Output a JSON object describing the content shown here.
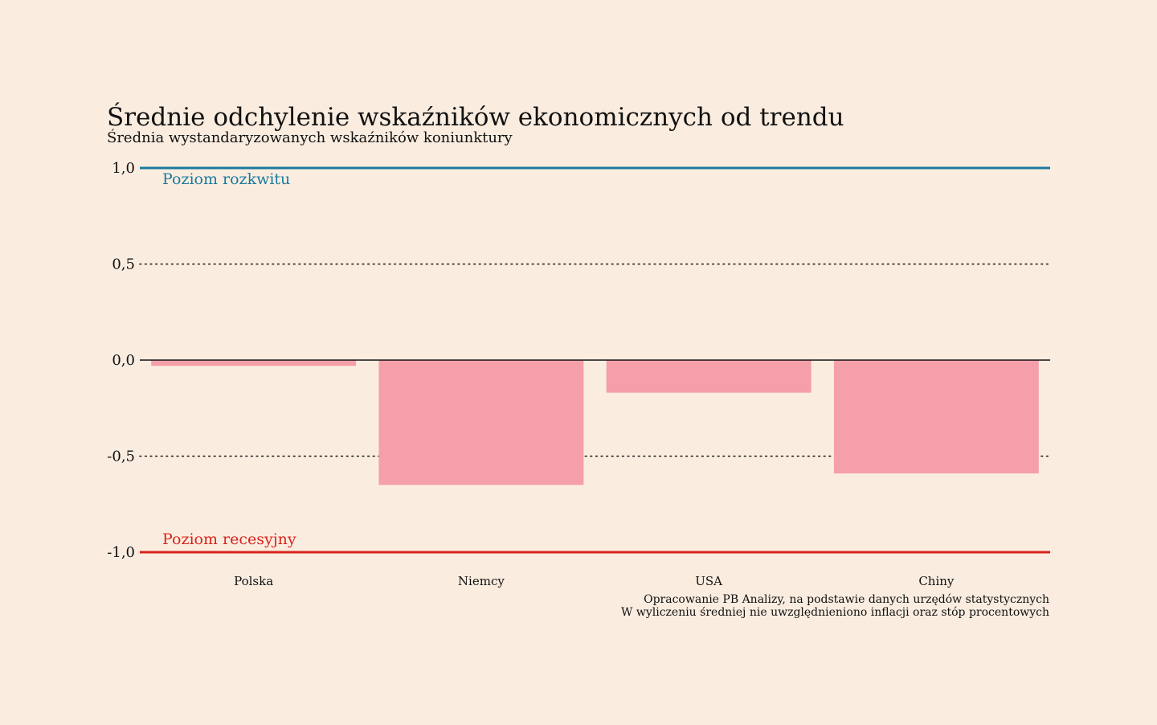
{
  "chart_data": {
    "type": "bar",
    "title": "Średnie odchylenie wskaźników ekonomicznych od trendu",
    "subtitle": "Średnia wystandaryzowanych wskaźników koniunktury",
    "categories": [
      "Polska",
      "Niemcy",
      "USA",
      "Chiny"
    ],
    "values": [
      -0.03,
      -0.65,
      -0.17,
      -0.59
    ],
    "ylim": [
      -1.0,
      1.0
    ],
    "yticks": [
      1.0,
      0.5,
      0.0,
      -0.5,
      -1.0
    ],
    "ytick_labels": [
      "1,0",
      "0,5",
      "0,0",
      "-0,5",
      "-1,0"
    ],
    "grid": "dotted at ±0.5",
    "reference_lines": [
      {
        "label": "Poziom rozkwitu",
        "value": 1.0,
        "color": "#1a7a9e"
      },
      {
        "label": "Poziom recesyjny",
        "value": -1.0,
        "color": "#d8231c"
      }
    ],
    "bar_color": "#f59fab",
    "notes": [
      "Opracowanie PB Analizy, na podstawie danych urzędów statystycznych",
      "W wyliczeniu średniej nie uwzględnieniono inflacji oraz stóp procentowych"
    ]
  }
}
